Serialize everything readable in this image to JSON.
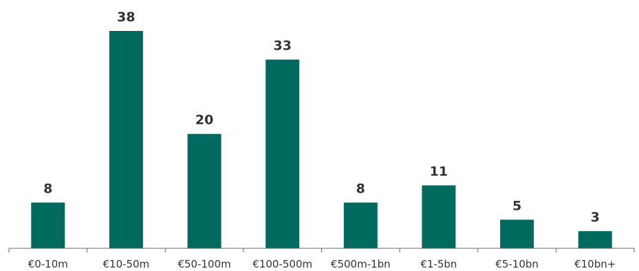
{
  "chart_data": {
    "type": "bar",
    "categories": [
      "€0-10m",
      "€10-50m",
      "€50-100m",
      "€100-500m",
      "€500m-1bn",
      "€1-5bn",
      "€5-10bn",
      "€10bn+"
    ],
    "values": [
      8,
      38,
      20,
      33,
      8,
      11,
      5,
      3
    ],
    "title": "",
    "xlabel": "",
    "ylabel": "",
    "ylim": [
      0,
      38
    ],
    "grid": false,
    "legend": "none",
    "colors": {
      "bar": "#006a5e",
      "axis": "#666666",
      "text": "#333333"
    }
  }
}
